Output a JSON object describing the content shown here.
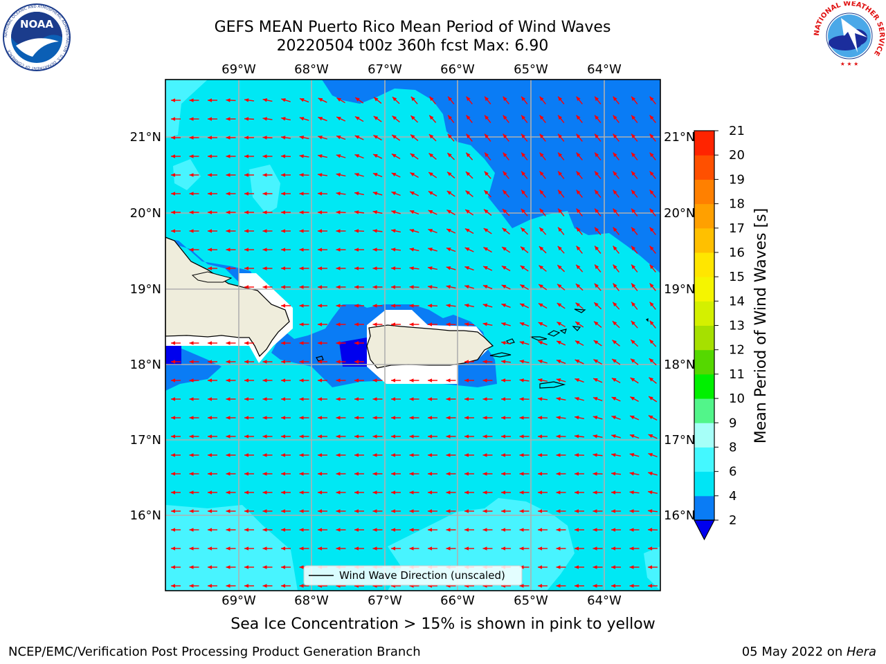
{
  "title": {
    "line1": "GEFS MEAN Puerto Rico Mean Period of Wind Waves",
    "line2": "20220504 t00z 360h fcst   Max: 6.90"
  },
  "caption": "Sea Ice Concentration > 15% is shown in pink to yellow",
  "footer": {
    "left": "NCEP/EMC/Verification Post Processing Product Generation Branch",
    "right_date": "05 May 2022 on ",
    "right_machine": "Hera"
  },
  "logos": {
    "noaa": {
      "word": "NOAA",
      "ring_text": "NATIONAL OCEANIC AND ATMOSPHERIC ADMINISTRATION · U.S. DEPARTMENT OF COMMERCE"
    },
    "nws": {
      "ring_text": "NATIONAL WEATHER SERVICE"
    }
  },
  "map": {
    "lon_ticks": [
      "69°W",
      "68°W",
      "67°W",
      "66°W",
      "65°W",
      "64°W"
    ],
    "lat_ticks": [
      "21°N",
      "20°N",
      "19°N",
      "18°N",
      "17°N",
      "16°N"
    ],
    "lon_range": [
      -70.0,
      -63.25
    ],
    "lat_range": [
      15.0,
      21.75
    ],
    "legend_label": "Wind Wave Direction (unscaled)",
    "arrow_color": "#ff0000",
    "land_color": "#efeddc"
  },
  "colorbar": {
    "label": "Mean Period of Wind Waves [s]",
    "boundaries": [
      2,
      4,
      6,
      8,
      9,
      10,
      11,
      12,
      13,
      14,
      15,
      16,
      17,
      18,
      19,
      20,
      21
    ],
    "tick_labels": [
      "2",
      "4",
      "6",
      "8",
      "9",
      "10",
      "11",
      "12",
      "13",
      "14",
      "15",
      "16",
      "17",
      "18",
      "19",
      "20",
      "21"
    ],
    "colors": [
      "#0a7cf5",
      "#00e5f5",
      "#44f8ff",
      "#a6fff8",
      "#52f58a",
      "#00f000",
      "#55d800",
      "#a6e000",
      "#d4f000",
      "#f5f500",
      "#ffe600",
      "#ffc000",
      "#ffa000",
      "#ff8000",
      "#ff5000",
      "#ff2400"
    ],
    "extend_color": "#0000ee"
  }
}
